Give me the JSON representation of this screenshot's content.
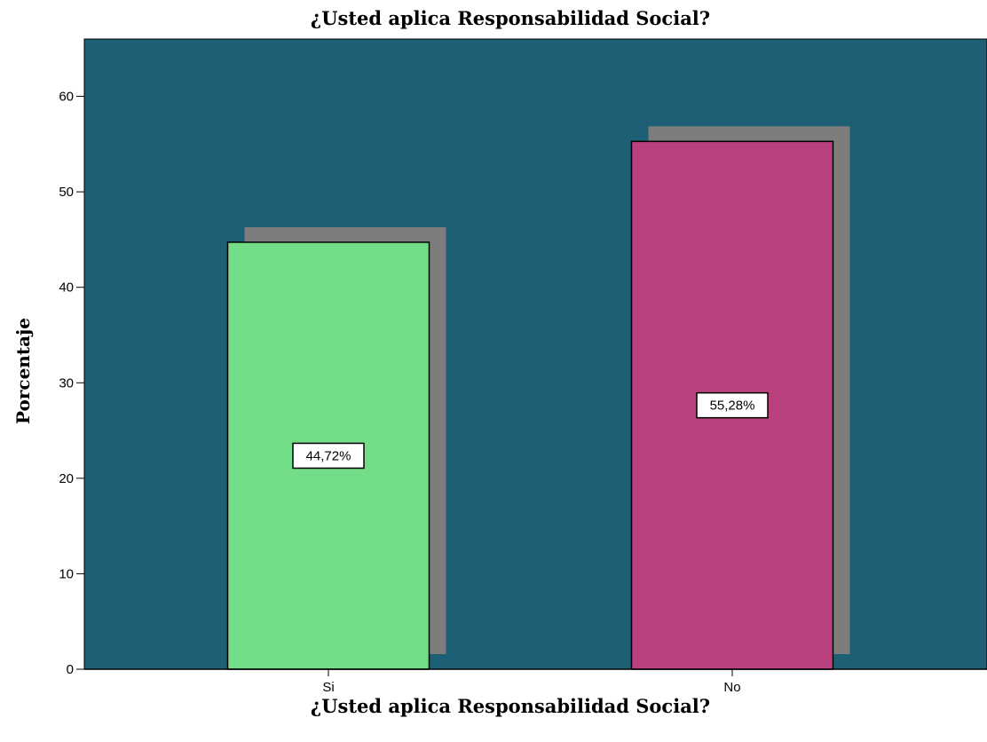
{
  "chart_data": {
    "type": "bar",
    "title": "¿Usted aplica Responsabilidad Social?",
    "xlabel": "¿Usted aplica Responsabilidad Social?",
    "ylabel": "Porcentaje",
    "categories": [
      "Si",
      "No"
    ],
    "values": [
      44.72,
      55.28
    ],
    "data_labels": [
      "44,72%",
      "55,28%"
    ],
    "ylim": [
      0,
      66
    ],
    "yticks": [
      0,
      10,
      20,
      30,
      40,
      50,
      60
    ],
    "grid": false,
    "legend": "none",
    "colors": {
      "plot_background": "#1d5f75",
      "bars": [
        "#72dd86",
        "#ba417e"
      ],
      "shadow": "#7d7d7d"
    }
  }
}
